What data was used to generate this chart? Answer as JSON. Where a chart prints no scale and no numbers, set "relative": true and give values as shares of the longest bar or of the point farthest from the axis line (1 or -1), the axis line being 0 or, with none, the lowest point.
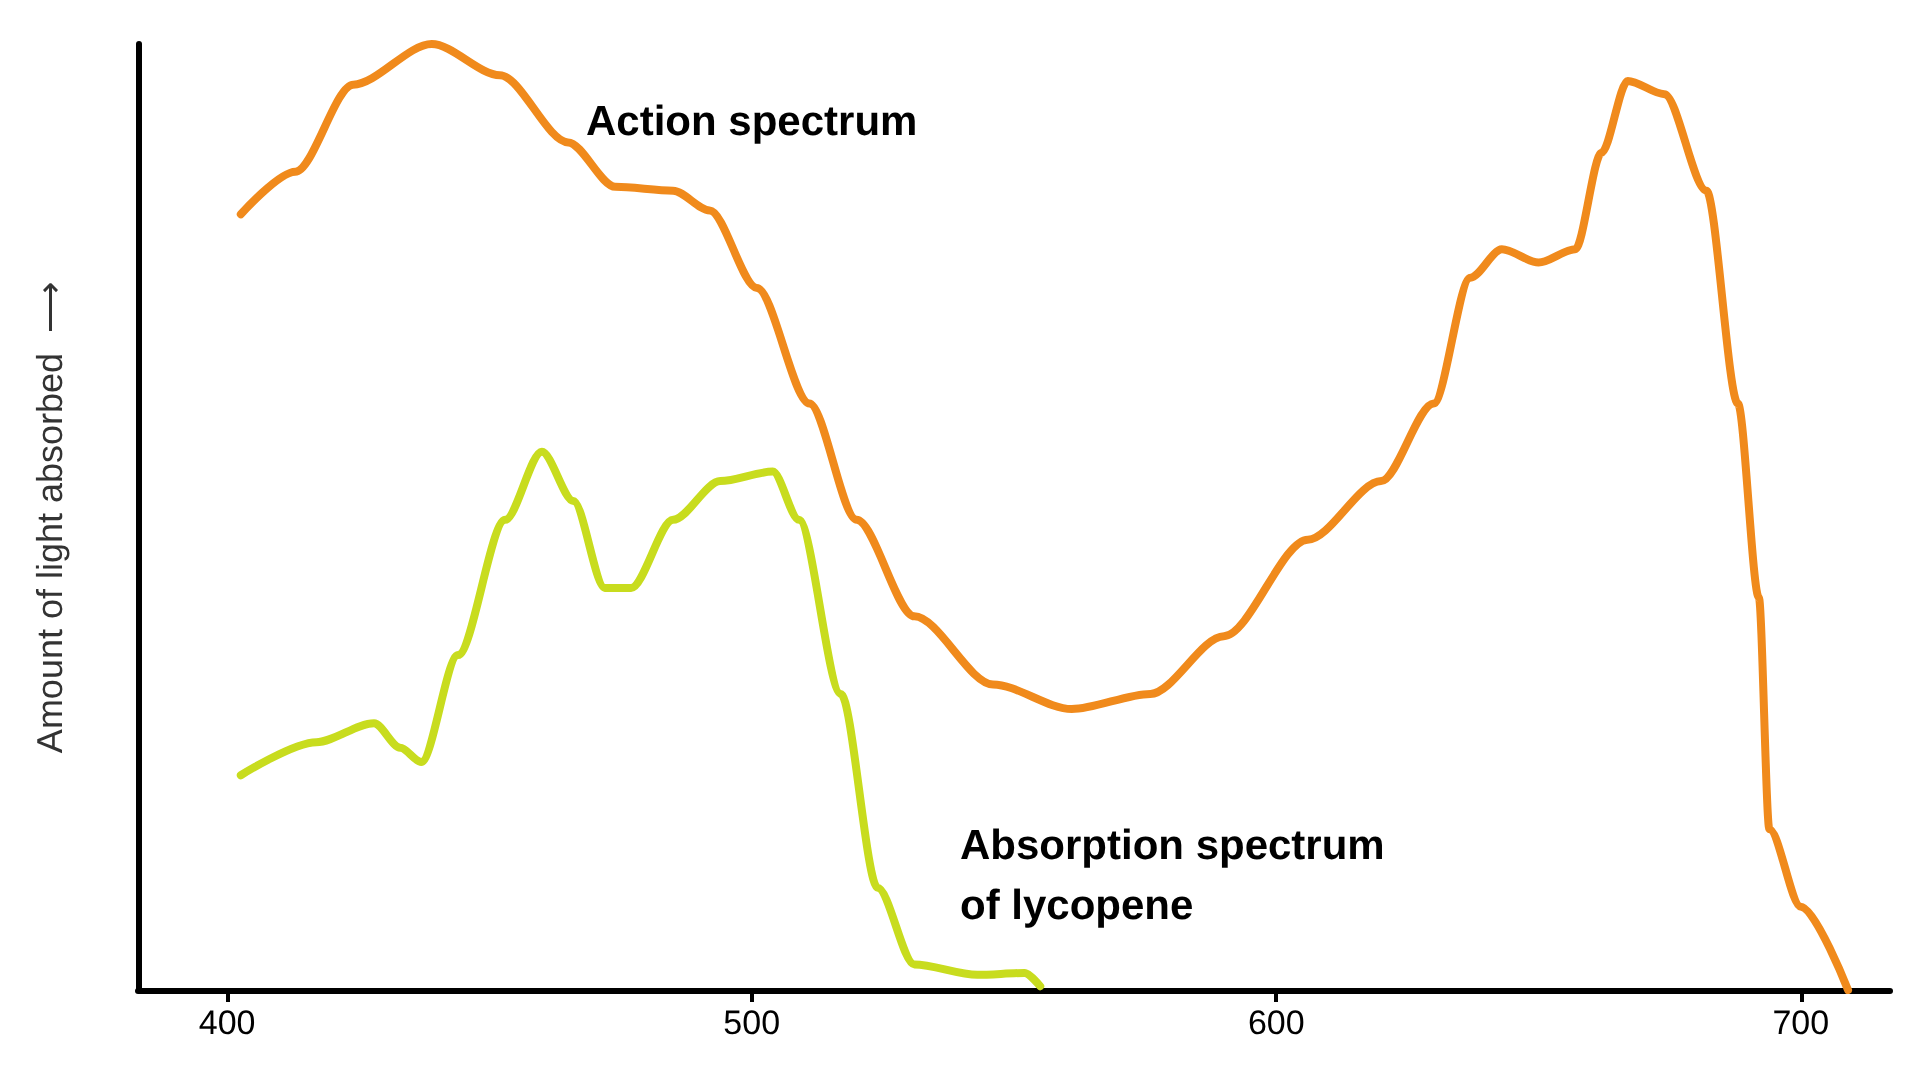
{
  "chart_data": {
    "type": "line",
    "relative": true,
    "ylabel": "Amount of light absorbed  ⟶",
    "xlim": [
      383,
      717
    ],
    "xticks": [
      400,
      500,
      600,
      700
    ],
    "grid": false,
    "legend": false,
    "marker": "none",
    "line_style": "solid",
    "series": [
      {
        "name": "Action spectrum",
        "color": "#f08a1c",
        "x": [
          402.6,
          413,
          424,
          439,
          452,
          465,
          474,
          485,
          492,
          501,
          511,
          520,
          531,
          546,
          561,
          576,
          590,
          606,
          620,
          630,
          637,
          643,
          650,
          657,
          662,
          667,
          674,
          682,
          688,
          692,
          694,
          700,
          709
        ],
        "values": [
          0.82,
          0.865,
          0.957,
          1,
          0.967,
          0.896,
          0.849,
          0.845,
          0.824,
          0.742,
          0.62,
          0.497,
          0.395,
          0.323,
          0.297,
          0.313,
          0.374,
          0.476,
          0.538,
          0.62,
          0.753,
          0.783,
          0.769,
          0.783,
          0.885,
          0.961,
          0.947,
          0.845,
          0.62,
          0.415,
          0.17,
          0.088,
          0
        ]
      },
      {
        "name": "Absorption spectrum\nof lycopene",
        "color": "#c8dc1e",
        "x": [
          402.6,
          417,
          428,
          433,
          437,
          444,
          453,
          460,
          466,
          472,
          477,
          485,
          494,
          504,
          509,
          517,
          524,
          531,
          543,
          552,
          555
        ],
        "values": [
          0.227,
          0.262,
          0.282,
          0.256,
          0.241,
          0.354,
          0.497,
          0.569,
          0.517,
          0.425,
          0.425,
          0.497,
          0.538,
          0.548,
          0.497,
          0.313,
          0.108,
          0.027,
          0.016,
          0.018,
          0.004
        ]
      }
    ]
  }
}
